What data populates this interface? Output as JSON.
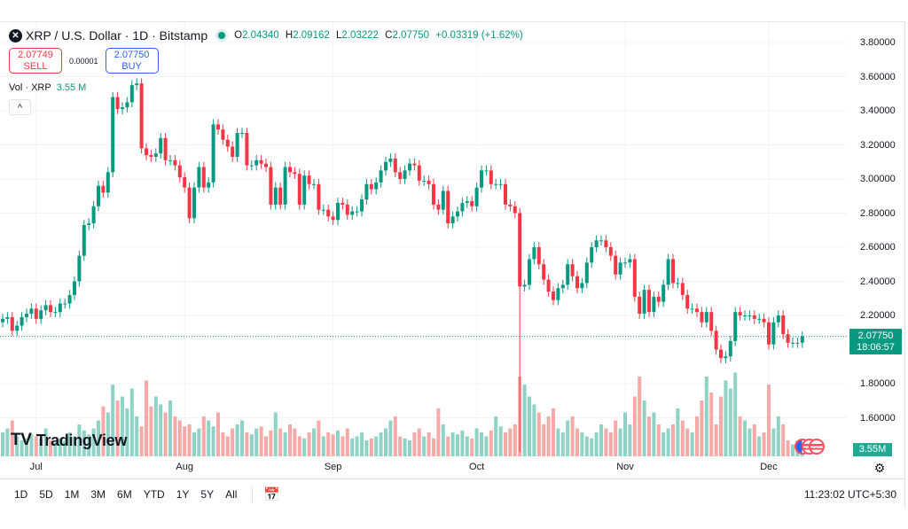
{
  "header": {
    "symbol_title": "XRP / U.S. Dollar · 1D · Bitstamp",
    "symbol_icon": "xrp-logo-icon",
    "open_label": "O",
    "open": "2.04340",
    "high_label": "H",
    "high": "2.09162",
    "low_label": "L",
    "low": "2.03222",
    "close_label": "C",
    "close": "2.07750",
    "change": "+0.03319 (+1.62%)"
  },
  "trade": {
    "sell_price": "2.07749",
    "sell_label": "SELL",
    "spread": "0.00001",
    "buy_price": "2.07750",
    "buy_label": "BUY"
  },
  "volume_legend": {
    "label": "Vol · XRP",
    "value": "3.55 M"
  },
  "price_tag": {
    "price": "2.07750",
    "countdown": "18:06:57"
  },
  "volume_tag": "3.55M",
  "logo": "TradingView",
  "bottom_bar": {
    "ranges": [
      "1D",
      "5D",
      "1M",
      "3M",
      "6M",
      "YTD",
      "1Y",
      "5Y",
      "All"
    ],
    "clock": "11:23:02 UTC+5:30"
  },
  "colors": {
    "up": "#089981",
    "down": "#f23645",
    "vol_up": "#8fd3c7",
    "vol_down": "#f7a9a7",
    "sell": "#f23645",
    "buy": "#2962ff"
  },
  "chart_data": {
    "type": "candlestick",
    "ylim": [
      1.5,
      3.85
    ],
    "y_ticks": [
      "3.80000",
      "3.60000",
      "3.40000",
      "3.20000",
      "3.00000",
      "2.80000",
      "2.60000",
      "2.40000",
      "2.20000",
      "1.80000",
      "1.60000"
    ],
    "x_ticks": [
      "Jul",
      "Aug",
      "Sep",
      "Oct",
      "Nov",
      "Dec"
    ],
    "grid": true,
    "last_price": 2.0775,
    "volume_unit": "M",
    "notable_lows": {
      "10-10": 1.4
    },
    "candles": [
      [
        "06-24",
        2.18
      ],
      [
        "06-25",
        2.19
      ],
      [
        "06-26",
        2.11
      ],
      [
        "06-27",
        2.14
      ],
      [
        "06-28",
        2.19
      ],
      [
        "06-29",
        2.21
      ],
      [
        "06-30",
        2.24
      ],
      [
        "07-01",
        2.18
      ],
      [
        "07-02",
        2.23
      ],
      [
        "07-03",
        2.26
      ],
      [
        "07-04",
        2.22
      ],
      [
        "07-05",
        2.22
      ],
      [
        "07-06",
        2.27
      ],
      [
        "07-07",
        2.27
      ],
      [
        "07-08",
        2.32
      ],
      [
        "07-09",
        2.4
      ],
      [
        "07-10",
        2.55
      ],
      [
        "07-11",
        2.73
      ],
      [
        "07-12",
        2.74
      ],
      [
        "07-13",
        2.84
      ],
      [
        "07-14",
        2.96
      ],
      [
        "07-15",
        2.92
      ],
      [
        "07-16",
        3.04
      ],
      [
        "07-17",
        3.48
      ],
      [
        "07-18",
        3.41
      ],
      [
        "07-19",
        3.42
      ],
      [
        "07-20",
        3.45
      ],
      [
        "07-21",
        3.55
      ],
      [
        "07-22",
        3.56
      ],
      [
        "07-23",
        3.18
      ],
      [
        "07-24",
        3.14
      ],
      [
        "07-25",
        3.13
      ],
      [
        "07-26",
        3.15
      ],
      [
        "07-27",
        3.24
      ],
      [
        "07-28",
        3.11
      ],
      [
        "07-29",
        3.11
      ],
      [
        "07-30",
        3.08
      ],
      [
        "07-31",
        3.01
      ],
      [
        "08-01",
        2.95
      ],
      [
        "08-02",
        2.77
      ],
      [
        "08-03",
        2.95
      ],
      [
        "08-04",
        3.07
      ],
      [
        "08-05",
        2.95
      ],
      [
        "08-06",
        2.98
      ],
      [
        "08-07",
        3.32
      ],
      [
        "08-08",
        3.29
      ],
      [
        "08-09",
        3.23
      ],
      [
        "08-10",
        3.19
      ],
      [
        "08-11",
        3.13
      ],
      [
        "08-12",
        3.27
      ],
      [
        "08-13",
        3.27
      ],
      [
        "08-14",
        3.08
      ],
      [
        "08-15",
        3.08
      ],
      [
        "08-16",
        3.11
      ],
      [
        "08-17",
        3.09
      ],
      [
        "08-18",
        3.07
      ],
      [
        "08-19",
        2.85
      ],
      [
        "08-20",
        2.95
      ],
      [
        "08-21",
        2.85
      ],
      [
        "08-22",
        3.07
      ],
      [
        "08-23",
        3.04
      ],
      [
        "08-24",
        3.03
      ],
      [
        "08-25",
        2.85
      ],
      [
        "08-26",
        3.02
      ],
      [
        "08-27",
        2.97
      ],
      [
        "08-28",
        2.97
      ],
      [
        "08-29",
        2.82
      ],
      [
        "08-30",
        2.82
      ],
      [
        "08-31",
        2.78
      ],
      [
        "09-01",
        2.76
      ],
      [
        "09-02",
        2.86
      ],
      [
        "09-03",
        2.85
      ],
      [
        "09-04",
        2.79
      ],
      [
        "09-05",
        2.81
      ],
      [
        "09-06",
        2.81
      ],
      [
        "09-07",
        2.88
      ],
      [
        "09-08",
        2.97
      ],
      [
        "09-09",
        2.94
      ],
      [
        "09-10",
        2.98
      ],
      [
        "09-11",
        3.05
      ],
      [
        "09-12",
        3.1
      ],
      [
        "09-13",
        3.12
      ],
      [
        "09-14",
        3.04
      ],
      [
        "09-15",
        3.0
      ],
      [
        "09-16",
        3.05
      ],
      [
        "09-17",
        3.09
      ],
      [
        "09-18",
        3.08
      ],
      [
        "09-19",
        2.99
      ],
      [
        "09-20",
        2.99
      ],
      [
        "09-21",
        2.97
      ],
      [
        "09-22",
        2.85
      ],
      [
        "09-23",
        2.82
      ],
      [
        "09-24",
        2.93
      ],
      [
        "09-25",
        2.74
      ],
      [
        "09-26",
        2.78
      ],
      [
        "09-27",
        2.81
      ],
      [
        "09-28",
        2.86
      ],
      [
        "09-29",
        2.87
      ],
      [
        "09-30",
        2.84
      ],
      [
        "10-01",
        2.95
      ],
      [
        "10-02",
        3.05
      ],
      [
        "10-03",
        3.05
      ],
      [
        "10-04",
        2.97
      ],
      [
        "10-05",
        2.97
      ],
      [
        "10-06",
        2.97
      ],
      [
        "10-07",
        2.85
      ],
      [
        "10-08",
        2.84
      ],
      [
        "10-09",
        2.8
      ],
      [
        "10-10",
        2.37
      ],
      [
        "10-11",
        2.38
      ],
      [
        "10-12",
        2.53
      ],
      [
        "10-13",
        2.6
      ],
      [
        "10-14",
        2.5
      ],
      [
        "10-15",
        2.41
      ],
      [
        "10-16",
        2.34
      ],
      [
        "10-17",
        2.29
      ],
      [
        "10-18",
        2.36
      ],
      [
        "10-19",
        2.38
      ],
      [
        "10-20",
        2.5
      ],
      [
        "10-21",
        2.43
      ],
      [
        "10-22",
        2.36
      ],
      [
        "10-23",
        2.39
      ],
      [
        "10-24",
        2.51
      ],
      [
        "10-25",
        2.6
      ],
      [
        "10-26",
        2.64
      ],
      [
        "10-27",
        2.64
      ],
      [
        "10-28",
        2.6
      ],
      [
        "10-29",
        2.55
      ],
      [
        "10-30",
        2.44
      ],
      [
        "10-31",
        2.51
      ],
      [
        "11-01",
        2.51
      ],
      [
        "11-02",
        2.53
      ],
      [
        "11-03",
        2.31
      ],
      [
        "11-04",
        2.21
      ],
      [
        "11-05",
        2.35
      ],
      [
        "11-06",
        2.22
      ],
      [
        "11-07",
        2.31
      ],
      [
        "11-08",
        2.28
      ],
      [
        "11-09",
        2.38
      ],
      [
        "11-10",
        2.53
      ],
      [
        "11-11",
        2.39
      ],
      [
        "11-12",
        2.39
      ],
      [
        "11-13",
        2.32
      ],
      [
        "11-14",
        2.24
      ],
      [
        "11-15",
        2.24
      ],
      [
        "11-16",
        2.22
      ],
      [
        "11-17",
        2.16
      ],
      [
        "11-18",
        2.22
      ],
      [
        "11-19",
        2.11
      ],
      [
        "11-20",
        2.0
      ],
      [
        "11-21",
        1.95
      ],
      [
        "11-22",
        1.96
      ],
      [
        "11-23",
        2.05
      ],
      [
        "11-24",
        2.22
      ],
      [
        "11-25",
        2.2
      ],
      [
        "11-26",
        2.2
      ],
      [
        "11-27",
        2.2
      ],
      [
        "11-28",
        2.18
      ],
      [
        "11-29",
        2.18
      ],
      [
        "11-30",
        2.16
      ],
      [
        "12-01",
        2.03
      ],
      [
        "12-02",
        2.16
      ],
      [
        "12-03",
        2.2
      ],
      [
        "12-04",
        2.09
      ],
      [
        "12-05",
        2.04
      ],
      [
        "12-06",
        2.04
      ],
      [
        "12-07",
        2.04
      ],
      [
        "12-08",
        2.0775
      ]
    ],
    "volumes": [
      12,
      14,
      18,
      10,
      8,
      9,
      11,
      10,
      9,
      14,
      8,
      7,
      9,
      8,
      12,
      10,
      16,
      13,
      11,
      14,
      18,
      25,
      22,
      36,
      28,
      30,
      24,
      34,
      20,
      15,
      38,
      25,
      30,
      26,
      22,
      28,
      20,
      18,
      15,
      16,
      12,
      14,
      20,
      18,
      15,
      22,
      12,
      10,
      14,
      16,
      18,
      12,
      11,
      14,
      15,
      10,
      13,
      22,
      14,
      12,
      16,
      14,
      10,
      9,
      12,
      14,
      18,
      10,
      12,
      11,
      13,
      10,
      14,
      9,
      10,
      12,
      8,
      9,
      10,
      12,
      14,
      18,
      20,
      10,
      9,
      8,
      12,
      14,
      10,
      12,
      9,
      24,
      16,
      10,
      12,
      11,
      13,
      10,
      9,
      14,
      12,
      10,
      13,
      20,
      15,
      12,
      14,
      16,
      40,
      36,
      30,
      26,
      22,
      16,
      20,
      24,
      14,
      12,
      18,
      20,
      14,
      12,
      10,
      9,
      12,
      16,
      14,
      12,
      18,
      14,
      22,
      16,
      30,
      40,
      28,
      20,
      22,
      16,
      12,
      14,
      16,
      24,
      18,
      14,
      12,
      20,
      28,
      40,
      32,
      16,
      30,
      38,
      34,
      42,
      20,
      18,
      14,
      16,
      10,
      12,
      36,
      14,
      20,
      16,
      8,
      6,
      8,
      3.55
    ]
  }
}
